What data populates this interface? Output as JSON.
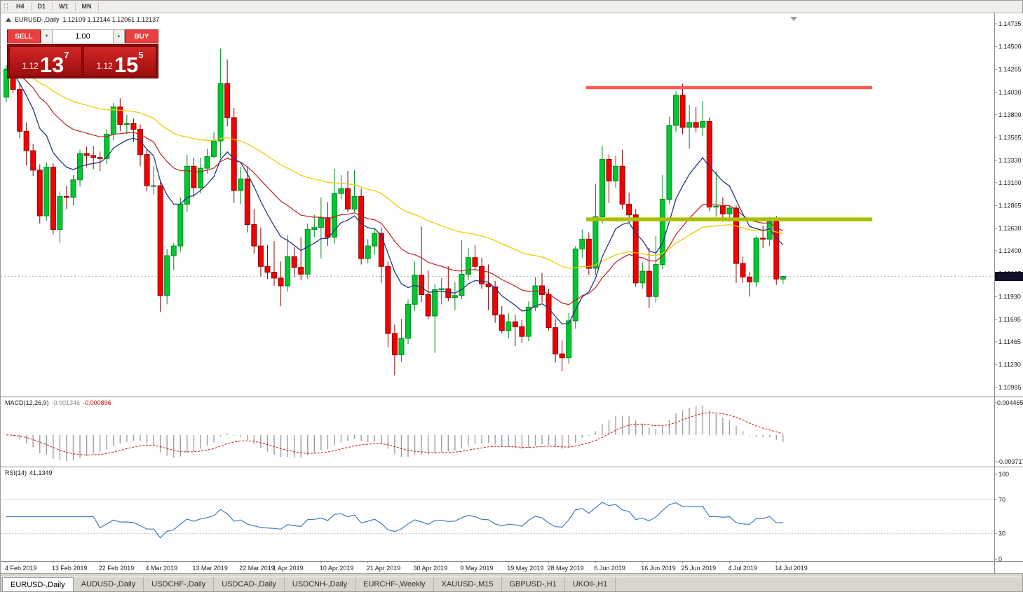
{
  "toolbar": {
    "timeframes": [
      "H4",
      "D1",
      "W1",
      "MN"
    ]
  },
  "chart": {
    "title": "EURUSD-,Daily",
    "ohlc_text": "1.12109 1.12144 1.12061 1.12137"
  },
  "trade_panel": {
    "sell_label": "SELL",
    "buy_label": "BUY",
    "volume": "1.00",
    "sell_price_prefix": "1.12",
    "sell_price_big": "13",
    "sell_price_sup": "7",
    "buy_price_prefix": "1.12",
    "buy_price_big": "15",
    "buy_price_sup": "5"
  },
  "price_axis": {
    "labels": [
      "1.14735",
      "1.14500",
      "1.14265",
      "1.14030",
      "1.13800",
      "1.13565",
      "1.13330",
      "1.13100",
      "1.12865",
      "1.12630",
      "1.12400",
      "1.12165",
      "1.11930",
      "1.11695",
      "1.11465",
      "1.11230",
      "1.10995"
    ],
    "current_price_label": "1.12137"
  },
  "macd": {
    "name": "MACD(12,26,9)",
    "value1": "-0.001346",
    "value2": "-0.000896",
    "axis_max": "0.004465",
    "axis_min": "-0.003717"
  },
  "rsi": {
    "name": "RSI(14)",
    "value": "41.1349",
    "axis": [
      "100",
      "70",
      "30",
      "0"
    ],
    "levels": [
      70,
      30
    ]
  },
  "date_axis": [
    {
      "label": "4 Feb 2019",
      "index": 0
    },
    {
      "label": "13 Feb 2019",
      "index": 7
    },
    {
      "label": "22 Feb 2019",
      "index": 14
    },
    {
      "label": "4 Mar 2019",
      "index": 21
    },
    {
      "label": "13 Mar 2019",
      "index": 28
    },
    {
      "label": "22 Mar 2019",
      "index": 35
    },
    {
      "label": "1 Apr 2019",
      "index": 40
    },
    {
      "label": "10 Apr 2019",
      "index": 47
    },
    {
      "label": "21 Apr 2019",
      "index": 54
    },
    {
      "label": "30 Apr 2019",
      "index": 61
    },
    {
      "label": "9 May 2019",
      "index": 68
    },
    {
      "label": "19 May 2019",
      "index": 75
    },
    {
      "label": "28 May 2019",
      "index": 81
    },
    {
      "label": "6 Jun 2019",
      "index": 88
    },
    {
      "label": "16 Jun 2019",
      "index": 95
    },
    {
      "label": "25 Jun 2019",
      "index": 101
    },
    {
      "label": "4 Jul 2019",
      "index": 108
    },
    {
      "label": "14 Jul 2019",
      "index": 115
    }
  ],
  "tabs": [
    {
      "label": "EURUSD-,Daily",
      "active": true
    },
    {
      "label": "AUDUSD-,Daily",
      "active": false
    },
    {
      "label": "USDCHF-,Daily",
      "active": false
    },
    {
      "label": "USDCAD-,Daily",
      "active": false
    },
    {
      "label": "USDCNH-,Daily",
      "active": false
    },
    {
      "label": "EURCHF-,Weekly",
      "active": false
    },
    {
      "label": "XAUUSD-,M15",
      "active": false
    },
    {
      "label": "GBPUSD-,H1",
      "active": false
    },
    {
      "label": "UKOil-,H1",
      "active": false
    }
  ],
  "colors": {
    "bull": "#00c832",
    "bull_border": "#008a1e",
    "bear": "#f40000",
    "bear_border": "#8b0000",
    "ma_fast": "#22397e",
    "ma_mid": "#bf2020",
    "ma_slow": "#f2ca00",
    "resistance": "#ff5a52",
    "support": "#a9c003",
    "macd_hist": "#9e9e9e",
    "macd_signal": "#cc1111",
    "rsi_line": "#3e7bc0",
    "price_badge_bg": "#0e0e2a",
    "current_price_line": "#b8b8b8"
  },
  "chart_data": {
    "type": "candlestick",
    "symbol": "EURUSD",
    "timeframe": "Daily",
    "title": "EURUSD-,Daily",
    "price_range": [
      1.10995,
      1.14735
    ],
    "current_price": 1.12137,
    "resistance_line": {
      "price": 1.14079
    },
    "support_line": {
      "price": 1.12724
    },
    "candles": [
      [
        1.1398,
        1.1431,
        1.1393,
        1.1427
      ],
      [
        1.1427,
        1.1433,
        1.1402,
        1.1406
      ],
      [
        1.1406,
        1.1412,
        1.1356,
        1.1363
      ],
      [
        1.1363,
        1.1372,
        1.1328,
        1.1343
      ],
      [
        1.1343,
        1.135,
        1.1317,
        1.1323
      ],
      [
        1.1323,
        1.1329,
        1.1268,
        1.1276
      ],
      [
        1.1276,
        1.1331,
        1.1271,
        1.1326
      ],
      [
        1.1326,
        1.133,
        1.1257,
        1.1262
      ],
      [
        1.1262,
        1.1301,
        1.1248,
        1.1296
      ],
      [
        1.1296,
        1.1307,
        1.1283,
        1.1295
      ],
      [
        1.1295,
        1.1318,
        1.1287,
        1.1313
      ],
      [
        1.1313,
        1.1344,
        1.1306,
        1.134
      ],
      [
        1.134,
        1.1347,
        1.1326,
        1.1338
      ],
      [
        1.1338,
        1.1348,
        1.1324,
        1.1336
      ],
      [
        1.1336,
        1.1342,
        1.1322,
        1.1335
      ],
      [
        1.1335,
        1.1365,
        1.1329,
        1.136
      ],
      [
        1.136,
        1.1392,
        1.1354,
        1.1388
      ],
      [
        1.1388,
        1.1397,
        1.1363,
        1.137
      ],
      [
        1.137,
        1.138,
        1.136,
        1.1371
      ],
      [
        1.1371,
        1.1376,
        1.1352,
        1.1365
      ],
      [
        1.1365,
        1.137,
        1.1327,
        1.1339
      ],
      [
        1.1339,
        1.1344,
        1.1301,
        1.1307
      ],
      [
        1.1307,
        1.1327,
        1.1298,
        1.1307
      ],
      [
        1.1307,
        1.1311,
        1.1177,
        1.1194
      ],
      [
        1.1194,
        1.1242,
        1.1185,
        1.1235
      ],
      [
        1.1235,
        1.1248,
        1.122,
        1.1245
      ],
      [
        1.1245,
        1.1295,
        1.1239,
        1.1288
      ],
      [
        1.1288,
        1.1339,
        1.128,
        1.1327
      ],
      [
        1.1327,
        1.1336,
        1.1295,
        1.1305
      ],
      [
        1.1305,
        1.1336,
        1.1299,
        1.1325
      ],
      [
        1.1325,
        1.1345,
        1.1319,
        1.1337
      ],
      [
        1.1337,
        1.1362,
        1.1335,
        1.1353
      ],
      [
        1.1353,
        1.1448,
        1.1335,
        1.1412
      ],
      [
        1.1412,
        1.1437,
        1.1368,
        1.1377
      ],
      [
        1.1377,
        1.1387,
        1.1289,
        1.1302
      ],
      [
        1.1302,
        1.1326,
        1.1288,
        1.1314
      ],
      [
        1.1314,
        1.1327,
        1.1259,
        1.1267
      ],
      [
        1.1267,
        1.1283,
        1.1237,
        1.1245
      ],
      [
        1.1245,
        1.1264,
        1.1214,
        1.1224
      ],
      [
        1.1224,
        1.1246,
        1.1211,
        1.1218
      ],
      [
        1.1218,
        1.125,
        1.1204,
        1.1212
      ],
      [
        1.1212,
        1.1229,
        1.1183,
        1.1204
      ],
      [
        1.1204,
        1.1256,
        1.1198,
        1.1234
      ],
      [
        1.1234,
        1.1244,
        1.1213,
        1.1223
      ],
      [
        1.1223,
        1.1254,
        1.121,
        1.1216
      ],
      [
        1.1216,
        1.1268,
        1.1211,
        1.1262
      ],
      [
        1.1262,
        1.1277,
        1.1254,
        1.1264
      ],
      [
        1.1264,
        1.1295,
        1.1232,
        1.1274
      ],
      [
        1.1274,
        1.129,
        1.1245,
        1.1254
      ],
      [
        1.1254,
        1.1324,
        1.1247,
        1.1299
      ],
      [
        1.1299,
        1.1318,
        1.1293,
        1.1304
      ],
      [
        1.1304,
        1.1322,
        1.128,
        1.1283
      ],
      [
        1.1283,
        1.1323,
        1.128,
        1.1296
      ],
      [
        1.1296,
        1.1304,
        1.1226,
        1.1232
      ],
      [
        1.1232,
        1.1252,
        1.1227,
        1.1245
      ],
      [
        1.1245,
        1.1262,
        1.1236,
        1.1258
      ],
      [
        1.1258,
        1.1264,
        1.1207,
        1.1224
      ],
      [
        1.1224,
        1.1229,
        1.1141,
        1.1155
      ],
      [
        1.1155,
        1.1164,
        1.1112,
        1.1133
      ],
      [
        1.1133,
        1.117,
        1.1126,
        1.115
      ],
      [
        1.115,
        1.119,
        1.1144,
        1.1185
      ],
      [
        1.1185,
        1.1229,
        1.1178,
        1.1215
      ],
      [
        1.1215,
        1.1265,
        1.1187,
        1.1195
      ],
      [
        1.1195,
        1.122,
        1.117,
        1.1173
      ],
      [
        1.1173,
        1.1206,
        1.1135,
        1.12
      ],
      [
        1.12,
        1.1212,
        1.1185,
        1.1201
      ],
      [
        1.1201,
        1.1224,
        1.1188,
        1.1192
      ],
      [
        1.1192,
        1.1208,
        1.1179,
        1.1194
      ],
      [
        1.1194,
        1.1251,
        1.119,
        1.1216
      ],
      [
        1.1216,
        1.1243,
        1.121,
        1.1233
      ],
      [
        1.1233,
        1.1246,
        1.122,
        1.1224
      ],
      [
        1.1224,
        1.1233,
        1.1201,
        1.1206
      ],
      [
        1.1206,
        1.1226,
        1.1179,
        1.1203
      ],
      [
        1.1203,
        1.1209,
        1.1166,
        1.1174
      ],
      [
        1.1174,
        1.1183,
        1.1155,
        1.1158
      ],
      [
        1.1158,
        1.1176,
        1.115,
        1.1167
      ],
      [
        1.1167,
        1.1174,
        1.1142,
        1.1162
      ],
      [
        1.1162,
        1.1169,
        1.1145,
        1.1152
      ],
      [
        1.1152,
        1.1188,
        1.1147,
        1.1182
      ],
      [
        1.1182,
        1.1213,
        1.1178,
        1.1204
      ],
      [
        1.1204,
        1.1217,
        1.1187,
        1.1195
      ],
      [
        1.1195,
        1.1201,
        1.1158,
        1.1161
      ],
      [
        1.1161,
        1.117,
        1.1125,
        1.1134
      ],
      [
        1.1134,
        1.1148,
        1.1116,
        1.113
      ],
      [
        1.113,
        1.1176,
        1.1124,
        1.1168
      ],
      [
        1.1168,
        1.1245,
        1.116,
        1.1242
      ],
      [
        1.1242,
        1.1262,
        1.1233,
        1.1252
      ],
      [
        1.1252,
        1.1259,
        1.1215,
        1.1222
      ],
      [
        1.1222,
        1.1309,
        1.1215,
        1.1275
      ],
      [
        1.1275,
        1.1348,
        1.1268,
        1.1334
      ],
      [
        1.1334,
        1.1339,
        1.1289,
        1.1312
      ],
      [
        1.1312,
        1.1338,
        1.1305,
        1.1327
      ],
      [
        1.1327,
        1.1344,
        1.1283,
        1.1288
      ],
      [
        1.1288,
        1.13,
        1.1269,
        1.1277
      ],
      [
        1.1277,
        1.1283,
        1.1203,
        1.1207
      ],
      [
        1.1207,
        1.1228,
        1.1201,
        1.1219
      ],
      [
        1.1219,
        1.1243,
        1.1181,
        1.1193
      ],
      [
        1.1193,
        1.1255,
        1.1187,
        1.1226
      ],
      [
        1.1226,
        1.1318,
        1.1221,
        1.1293
      ],
      [
        1.1293,
        1.1378,
        1.1288,
        1.1369
      ],
      [
        1.1369,
        1.1404,
        1.1362,
        1.14
      ],
      [
        1.14,
        1.1412,
        1.136,
        1.1367
      ],
      [
        1.1367,
        1.139,
        1.1345,
        1.1372
      ],
      [
        1.1372,
        1.1388,
        1.1362,
        1.1367
      ],
      [
        1.1367,
        1.1394,
        1.1358,
        1.1373
      ],
      [
        1.1373,
        1.1377,
        1.1281,
        1.1285
      ],
      [
        1.1285,
        1.1322,
        1.1275,
        1.1286
      ],
      [
        1.1286,
        1.1295,
        1.127,
        1.1278
      ],
      [
        1.1278,
        1.1286,
        1.127,
        1.1284
      ],
      [
        1.1284,
        1.1287,
        1.1207,
        1.1227
      ],
      [
        1.1227,
        1.1234,
        1.1207,
        1.1213
      ],
      [
        1.1213,
        1.1218,
        1.1193,
        1.1208
      ],
      [
        1.1208,
        1.1255,
        1.1203,
        1.1253
      ],
      [
        1.1253,
        1.1266,
        1.1243,
        1.1252
      ],
      [
        1.1252,
        1.1275,
        1.1245,
        1.127
      ],
      [
        1.127,
        1.1276,
        1.1205,
        1.1211
      ],
      [
        1.12109,
        1.12144,
        1.12061,
        1.12137
      ]
    ]
  }
}
